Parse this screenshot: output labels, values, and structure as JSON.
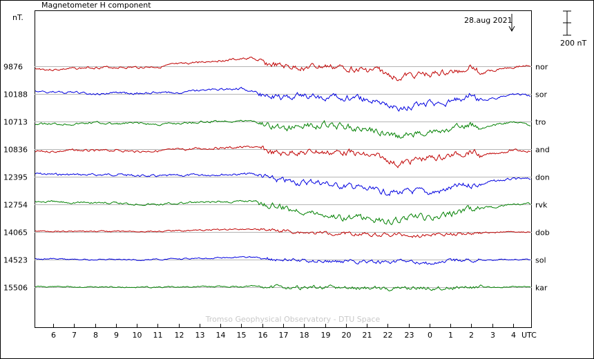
{
  "chart_data": {
    "type": "line",
    "title": "Magnetometer H component",
    "ylabel": "nT.",
    "date_label": "28.aug 2021",
    "scale_bar_label": "200 nT",
    "scale_bar_nT": 200,
    "credit": "Tromso Geophysical Observatory - DTU Space",
    "x_unit_label": "UTC",
    "x_tick_labels": [
      "6",
      "7",
      "8",
      "9",
      "10",
      "11",
      "12",
      "13",
      "14",
      "15",
      "16",
      "17",
      "18",
      "19",
      "20",
      "21",
      "22",
      "23",
      "0",
      "1",
      "2",
      "3",
      "4"
    ],
    "x_tick_hours": [
      6,
      7,
      8,
      9,
      10,
      11,
      12,
      13,
      14,
      15,
      16,
      17,
      18,
      19,
      20,
      21,
      22,
      23,
      24,
      25,
      26,
      27,
      28
    ],
    "x_range_hours": [
      5.1,
      28.9
    ],
    "grid": true,
    "colors": {
      "red": "#c00000",
      "blue": "#0000e0",
      "green": "#008000",
      "grid": "#b4b4b4"
    },
    "knot_hours": [
      5.1,
      6,
      7,
      8,
      9,
      10,
      11,
      12,
      13,
      14,
      15,
      15.5,
      16,
      16.5,
      17,
      17.5,
      18,
      18.5,
      19,
      19.5,
      20,
      20.5,
      21,
      21.5,
      22,
      22.5,
      23,
      23.5,
      24,
      24.5,
      25,
      25.5,
      26,
      26.5,
      27,
      27.5,
      28,
      28.9
    ],
    "series": [
      {
        "name": "nor",
        "baseline": "9876",
        "color": "red",
        "offsets": [
          -20,
          -30,
          -20,
          -10,
          -10,
          -10,
          -5,
          15,
          35,
          50,
          60,
          70,
          25,
          10,
          -5,
          -10,
          -12,
          -6,
          -4,
          -9,
          -13,
          -25,
          -35,
          -30,
          -75,
          -95,
          -80,
          -70,
          -70,
          -60,
          -55,
          -40,
          10,
          -60,
          -35,
          -15,
          -5,
          10
        ]
      },
      {
        "name": "sor",
        "baseline": "10188",
        "color": "blue",
        "offsets": [
          20,
          15,
          10,
          -5,
          10,
          5,
          10,
          10,
          30,
          40,
          45,
          20,
          -5,
          -15,
          -30,
          -25,
          -10,
          -20,
          -25,
          -30,
          -30,
          -35,
          -50,
          -60,
          -85,
          -125,
          -110,
          -90,
          -85,
          -80,
          -70,
          -40,
          5,
          -60,
          -40,
          -25,
          0,
          -15
        ]
      },
      {
        "name": "tro",
        "baseline": "10713",
        "color": "green",
        "offsets": [
          -20,
          -20,
          -20,
          -10,
          -20,
          -15,
          -25,
          -15,
          -5,
          5,
          5,
          10,
          -20,
          -35,
          -55,
          -50,
          -35,
          -35,
          -20,
          -40,
          -45,
          -60,
          -70,
          -80,
          -110,
          -130,
          -110,
          -95,
          -85,
          -90,
          -75,
          -50,
          -30,
          -50,
          -30,
          -20,
          -10,
          -30
        ]
      },
      {
        "name": "and",
        "baseline": "10836",
        "color": "red",
        "offsets": [
          -20,
          -20,
          -10,
          -15,
          -10,
          -20,
          -15,
          -5,
          5,
          10,
          15,
          20,
          0,
          -30,
          -40,
          -20,
          -35,
          -15,
          -30,
          -25,
          -25,
          -40,
          -55,
          -65,
          -90,
          -130,
          -105,
          -85,
          -75,
          -70,
          -55,
          -35,
          -20,
          -60,
          -40,
          -25,
          -10,
          -15
        ]
      },
      {
        "name": "don",
        "baseline": "12395",
        "color": "blue",
        "offsets": [
          25,
          20,
          18,
          15,
          20,
          10,
          5,
          10,
          15,
          20,
          20,
          25,
          5,
          -25,
          -35,
          -45,
          -50,
          -40,
          -55,
          -75,
          -80,
          -85,
          -110,
          -120,
          -130,
          -135,
          -130,
          -125,
          -135,
          -125,
          -100,
          -80,
          -70,
          -60,
          -40,
          -30,
          -20,
          -20
        ]
      },
      {
        "name": "rvk",
        "baseline": "12754",
        "color": "green",
        "offsets": [
          25,
          20,
          18,
          15,
          10,
          5,
          0,
          10,
          15,
          20,
          25,
          35,
          10,
          -10,
          -25,
          -40,
          -55,
          -70,
          -85,
          -100,
          -110,
          -115,
          -120,
          -130,
          -150,
          -130,
          -120,
          -110,
          -120,
          -110,
          -80,
          -60,
          -40,
          -30,
          -20,
          -10,
          0,
          0
        ]
      },
      {
        "name": "dob",
        "baseline": "14065",
        "color": "red",
        "offsets": [
          7,
          7,
          5,
          5,
          4,
          5,
          5,
          10,
          15,
          20,
          25,
          25,
          20,
          10,
          8,
          2,
          -5,
          -10,
          -8,
          -8,
          -10,
          -12,
          -14,
          -20,
          -25,
          -25,
          -30,
          -30,
          -25,
          -20,
          -20,
          -15,
          -10,
          -5,
          -5,
          0,
          0,
          0
        ]
      },
      {
        "name": "sol",
        "baseline": "14523",
        "color": "blue",
        "offsets": [
          5,
          5,
          3,
          0,
          0,
          -5,
          0,
          5,
          10,
          15,
          20,
          20,
          15,
          5,
          5,
          -2,
          -5,
          -10,
          -12,
          -12,
          -15,
          -18,
          -15,
          -20,
          -25,
          -20,
          -20,
          -25,
          -30,
          -25,
          -10,
          -5,
          0,
          0,
          0,
          0,
          0,
          0
        ]
      },
      {
        "name": "kar",
        "baseline": "15506",
        "color": "green",
        "offsets": [
          5,
          5,
          3,
          2,
          0,
          0,
          0,
          2,
          5,
          5,
          5,
          8,
          5,
          2,
          0,
          0,
          -2,
          -3,
          -4,
          -5,
          -8,
          -8,
          -8,
          -10,
          -14,
          -10,
          -5,
          -5,
          -10,
          -5,
          -3,
          -2,
          0,
          0,
          0,
          0,
          2,
          3
        ]
      }
    ]
  }
}
